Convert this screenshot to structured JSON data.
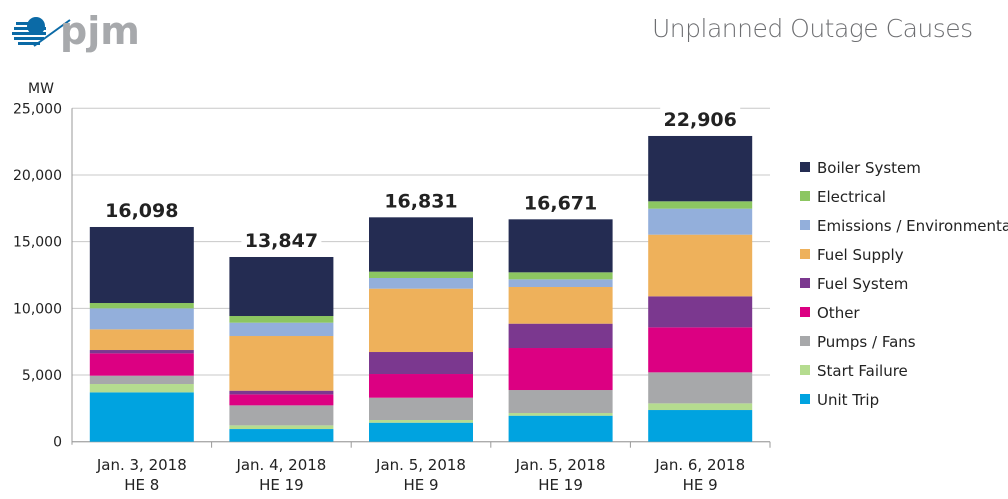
{
  "header": {
    "title": "Unplanned Outage Causes",
    "logo_text": "pjm"
  },
  "chart_data": {
    "type": "bar",
    "stacked": true,
    "title": "Unplanned Outage Causes",
    "ylabel": "MW",
    "xlabel": "",
    "ylim": [
      0,
      25000
    ],
    "yticks": [
      0,
      5000,
      10000,
      15000,
      20000,
      25000
    ],
    "ytick_labels": [
      "0",
      "5,000",
      "10,000",
      "15,000",
      "20,000",
      "25,000"
    ],
    "grid": true,
    "legend_position": "right",
    "categories": [
      [
        "Jan. 3, 2018",
        "HE 8"
      ],
      [
        "Jan. 4, 2018",
        "HE 19"
      ],
      [
        "Jan. 5, 2018",
        "HE 9"
      ],
      [
        "Jan. 5, 2018",
        "HE 19"
      ],
      [
        "Jan. 6, 2018",
        "HE 9"
      ]
    ],
    "totals": [
      "16,098",
      "13,847",
      "16,831",
      "16,671",
      "22,906"
    ],
    "series": [
      {
        "name": "Unit Trip",
        "color": "#00a3e0",
        "values": [
          3700,
          950,
          1425,
          1950,
          2375
        ]
      },
      {
        "name": "Start Failure",
        "color": "#b5dc8f",
        "values": [
          625,
          275,
          200,
          200,
          500
        ]
      },
      {
        "name": "Pumps / Fans",
        "color": "#a7a8aa",
        "values": [
          625,
          1500,
          1675,
          1725,
          2325
        ]
      },
      {
        "name": "Other",
        "color": "#dc0082",
        "values": [
          1675,
          825,
          1775,
          3150,
          3375
        ]
      },
      {
        "name": "Fuel System",
        "color": "#7b388f",
        "values": [
          250,
          275,
          1650,
          1825,
          2325
        ]
      },
      {
        "name": "Fuel Supply",
        "color": "#eeb15b",
        "values": [
          1550,
          4100,
          4750,
          2750,
          4625
        ]
      },
      {
        "name": "Emissions / Environmental",
        "color": "#93afdb",
        "values": [
          1575,
          1000,
          800,
          575,
          1950
        ]
      },
      {
        "name": "Electrical",
        "color": "#8cc661",
        "values": [
          400,
          500,
          475,
          525,
          550
        ]
      },
      {
        "name": "Boiler System",
        "color": "#242c52",
        "values": [
          5700,
          4425,
          4075,
          3975,
          4900
        ]
      }
    ]
  }
}
